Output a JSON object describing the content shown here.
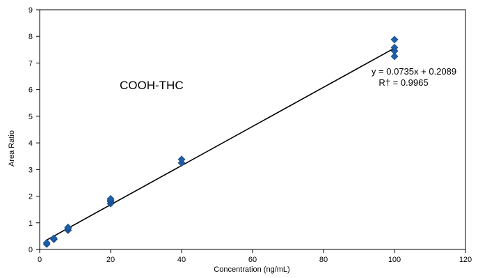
{
  "chart_data": {
    "type": "scatter",
    "xlabel": "Concentration (ng/mL)",
    "ylabel": "Area Ratio",
    "xlim": [
      0,
      120
    ],
    "ylim": [
      0,
      9
    ],
    "xticks": [
      0,
      20,
      40,
      60,
      80,
      100,
      120
    ],
    "yticks": [
      0,
      1,
      2,
      3,
      4,
      5,
      6,
      7,
      8,
      9
    ],
    "grid": false,
    "legend": "none",
    "marker_color": "#1f5fa8",
    "line_color": "#000000",
    "points": [
      {
        "x": 2,
        "y": 0.2
      },
      {
        "x": 2,
        "y": 0.25
      },
      {
        "x": 4,
        "y": 0.38
      },
      {
        "x": 4,
        "y": 0.42
      },
      {
        "x": 8,
        "y": 0.72
      },
      {
        "x": 8,
        "y": 0.78
      },
      {
        "x": 8,
        "y": 0.83
      },
      {
        "x": 20,
        "y": 1.72
      },
      {
        "x": 20,
        "y": 1.8
      },
      {
        "x": 20,
        "y": 1.85
      },
      {
        "x": 20,
        "y": 1.9
      },
      {
        "x": 40,
        "y": 3.25
      },
      {
        "x": 40,
        "y": 3.38
      },
      {
        "x": 100,
        "y": 7.25
      },
      {
        "x": 100,
        "y": 7.45
      },
      {
        "x": 100,
        "y": 7.58
      },
      {
        "x": 100,
        "y": 7.88
      }
    ],
    "fit": {
      "slope": 0.0735,
      "intercept": 0.2089,
      "x_range": [
        2,
        100
      ],
      "equation": "y = 0.0735x + 0.2089",
      "r2": "R† = 0.9965"
    },
    "annotations": [
      {
        "text": "COOH-THC"
      }
    ]
  }
}
